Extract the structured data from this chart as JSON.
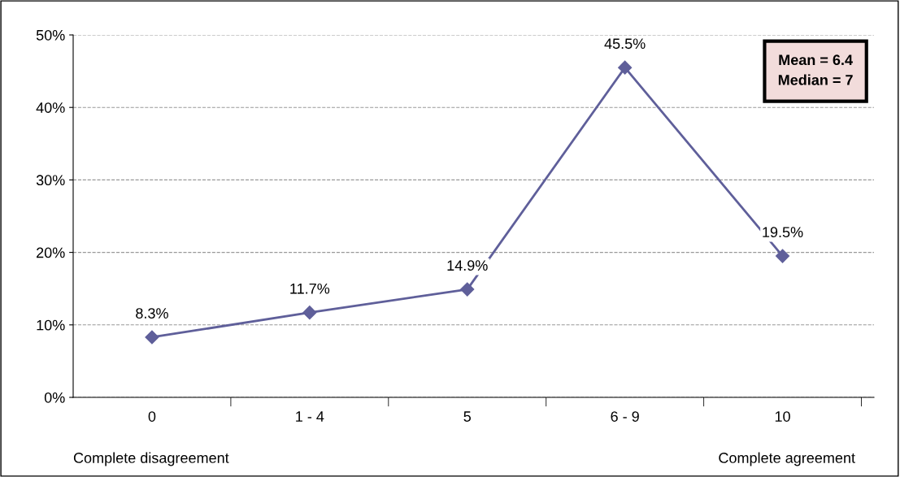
{
  "chart_data": {
    "type": "line",
    "categories": [
      "0",
      "1 - 4",
      "5",
      "6 - 9",
      "10"
    ],
    "series": [
      {
        "color": "#5f5f9a",
        "values": [
          8.3,
          11.7,
          14.9,
          45.5,
          19.5
        ],
        "value_labels": [
          "8.3%",
          "11.7%",
          "14.9%",
          "45.5%",
          "19.5%"
        ]
      }
    ],
    "ylim": [
      0,
      50
    ],
    "yticks": [
      {
        "value": 0,
        "label": "0%"
      },
      {
        "value": 10,
        "label": "10%"
      },
      {
        "value": 20,
        "label": "20%"
      },
      {
        "value": 30,
        "label": "30%"
      },
      {
        "value": 40,
        "label": "40%"
      },
      {
        "value": 50,
        "label": "50%"
      }
    ],
    "grid": "y",
    "marker": "diamond",
    "line_style": "solid",
    "legend": false,
    "annotations": [
      "Mean = 6.4\nMedian = 7",
      "Complete disagreement",
      "Complete agreement"
    ]
  }
}
